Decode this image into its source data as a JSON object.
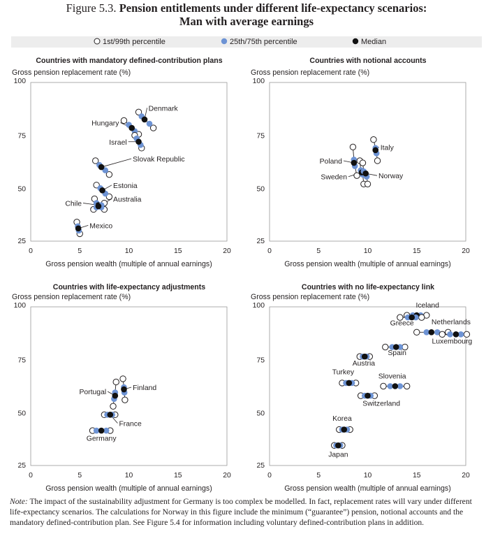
{
  "figure": {
    "label": "Figure 5.3.",
    "title_line1": "Pension entitlements under different life-expectancy scenarios:",
    "title_line2": "Man with average earnings"
  },
  "legend": {
    "items": [
      {
        "label": "1st/99th percentile",
        "marker": "open-circle"
      },
      {
        "label": "25th/75th percentile",
        "marker": "blue-circle"
      },
      {
        "label": "Median",
        "marker": "black-circle"
      }
    ]
  },
  "colors": {
    "quartile": "#6d93d4",
    "median": "#111111",
    "line": "#231f20",
    "background": "#ffffff"
  },
  "note": {
    "label": "Note:",
    "text": "The impact of the sustainability adjustment for Germany is too complex be modelled. In fact, replacement rates will vary under different life-expectancy scenarios. The calculations for Norway in this figure include the minimum (“guarantee”) pension, notional accounts and the mandatory defined-contribution plan. See Figure 5.4 for information including voluntary defined-contribution plans in addition."
  },
  "chart_data": [
    {
      "type": "scatter",
      "title": "Countries with mandatory defined-contribution plans",
      "ylabel": "Gross pension replacement rate (%)",
      "xlabel": "Gross pension wealth (multiple of annual earnings)",
      "xlim": [
        0,
        20
      ],
      "ylim": [
        25,
        100
      ],
      "xticks": [
        0,
        5,
        10,
        15,
        20
      ],
      "yticks": [
        25,
        50,
        75,
        100
      ],
      "series": [
        {
          "country": "Denmark",
          "points": [
            [
              11.0,
              86
            ],
            [
              11.3,
              84
            ],
            [
              11.6,
              82.5
            ],
            [
              12.1,
              80.5
            ],
            [
              12.5,
              78.5
            ]
          ]
        },
        {
          "country": "Hungary",
          "points": [
            [
              9.5,
              82
            ],
            [
              10.0,
              80
            ],
            [
              10.3,
              78.5
            ],
            [
              10.6,
              77
            ],
            [
              11.0,
              75.5
            ]
          ]
        },
        {
          "country": "Israel",
          "points": [
            [
              10.6,
              75
            ],
            [
              10.8,
              73.5
            ],
            [
              11.0,
              72
            ],
            [
              11.2,
              70.5
            ],
            [
              11.3,
              69
            ]
          ]
        },
        {
          "country": "Slovak Republic",
          "points": [
            [
              6.6,
              63
            ],
            [
              7.0,
              61
            ],
            [
              7.2,
              60
            ],
            [
              7.6,
              58.5
            ],
            [
              8.0,
              56.5
            ]
          ]
        },
        {
          "country": "Estonia",
          "points": [
            [
              6.7,
              51.5
            ],
            [
              7.1,
              50
            ],
            [
              7.3,
              49
            ],
            [
              7.6,
              47.5
            ],
            [
              8.0,
              46
            ]
          ]
        },
        {
          "country": "Chile",
          "points": [
            [
              6.5,
              45
            ],
            [
              6.7,
              43
            ],
            [
              6.9,
              42
            ],
            [
              7.2,
              41
            ],
            [
              7.5,
              40
            ]
          ]
        },
        {
          "country": "Australia",
          "points": [
            [
              6.4,
              40
            ],
            [
              6.7,
              41
            ],
            [
              6.9,
              41.5
            ],
            [
              7.2,
              42
            ],
            [
              7.5,
              43
            ]
          ]
        },
        {
          "country": "Mexico",
          "points": [
            [
              4.7,
              34
            ],
            [
              4.8,
              32
            ],
            [
              4.85,
              31
            ],
            [
              4.9,
              30
            ],
            [
              5.0,
              28.5
            ]
          ]
        }
      ],
      "labels": [
        {
          "text": "Denmark",
          "anchor": "start",
          "at": [
            12.0,
            87
          ],
          "to": [
            11.6,
            82.5
          ]
        },
        {
          "text": "Hungary",
          "anchor": "end",
          "at": [
            9.0,
            80
          ],
          "to": [
            10.3,
            78.5
          ]
        },
        {
          "text": "Israel",
          "anchor": "end",
          "at": [
            9.8,
            71
          ],
          "to": [
            11.0,
            72
          ]
        },
        {
          "text": "Slovak Republic",
          "anchor": "start",
          "at": [
            10.4,
            63
          ],
          "to": [
            7.2,
            60
          ]
        },
        {
          "text": "Estonia",
          "anchor": "start",
          "at": [
            8.4,
            50.5
          ],
          "to": [
            7.3,
            49
          ]
        },
        {
          "text": "Chile",
          "anchor": "end",
          "at": [
            5.2,
            42
          ],
          "to": [
            6.9,
            42
          ]
        },
        {
          "text": "Australia",
          "anchor": "start",
          "at": [
            8.4,
            44
          ],
          "to": [
            6.9,
            41.5
          ]
        },
        {
          "text": "Mexico",
          "anchor": "start",
          "at": [
            6.0,
            31.5
          ],
          "to": [
            4.85,
            31
          ]
        }
      ]
    },
    {
      "type": "scatter",
      "title": "Countries with notional accounts",
      "ylabel": "Gross pension replacement rate (%)",
      "xlabel": "Gross pension wealth (multiple of annual earnings)",
      "xlim": [
        0,
        20
      ],
      "ylim": [
        25,
        100
      ],
      "xticks": [
        0,
        5,
        10,
        15,
        20
      ],
      "yticks": [
        25,
        50,
        75,
        100
      ],
      "series": [
        {
          "country": "Italy",
          "points": [
            [
              10.6,
              73
            ],
            [
              10.8,
              69
            ],
            [
              10.8,
              68
            ],
            [
              10.9,
              66.5
            ],
            [
              11.0,
              63
            ]
          ]
        },
        {
          "country": "Poland",
          "points": [
            [
              8.5,
              69.5
            ],
            [
              8.6,
              63.5
            ],
            [
              8.6,
              62
            ],
            [
              8.7,
              60.5
            ],
            [
              8.9,
              56
            ]
          ]
        },
        {
          "country": "Sweden",
          "points": [
            [
              9.2,
              63
            ],
            [
              9.3,
              58.5
            ],
            [
              9.4,
              57.5
            ],
            [
              9.5,
              56.5
            ],
            [
              9.6,
              52
            ]
          ]
        },
        {
          "country": "Norway",
          "points": [
            [
              9.5,
              62
            ],
            [
              9.6,
              58
            ],
            [
              9.8,
              57
            ],
            [
              9.9,
              55.5
            ],
            [
              10.0,
              52
            ]
          ]
        }
      ],
      "labels": [
        {
          "text": "Italy",
          "anchor": "start",
          "at": [
            11.3,
            68.5
          ],
          "to": [
            10.8,
            68
          ]
        },
        {
          "text": "Poland",
          "anchor": "end",
          "at": [
            7.4,
            62
          ],
          "to": [
            8.6,
            62
          ]
        },
        {
          "text": "Sweden",
          "anchor": "end",
          "at": [
            7.9,
            54.5
          ],
          "to": [
            9.4,
            57.5
          ]
        },
        {
          "text": "Norway",
          "anchor": "start",
          "at": [
            11.1,
            55
          ],
          "to": [
            9.8,
            57
          ]
        }
      ]
    },
    {
      "type": "scatter",
      "title": "Countries with life-expectancy adjustments",
      "ylabel": "Gross pension replacement rate (%)",
      "xlabel": "Gross pension wealth (multiple of annual earnings)",
      "xlim": [
        0,
        20
      ],
      "ylim": [
        25,
        100
      ],
      "xticks": [
        0,
        5,
        10,
        15,
        20
      ],
      "yticks": [
        25,
        50,
        75,
        100
      ],
      "series": [
        {
          "country": "Portugal",
          "points": [
            [
              8.7,
              64.5
            ],
            [
              8.6,
              59.5
            ],
            [
              8.6,
              58
            ],
            [
              8.5,
              56.5
            ],
            [
              8.4,
              53
            ]
          ]
        },
        {
          "country": "Finland",
          "points": [
            [
              9.4,
              66
            ],
            [
              9.5,
              62
            ],
            [
              9.5,
              61
            ],
            [
              9.55,
              59.5
            ],
            [
              9.6,
              56
            ]
          ]
        },
        {
          "country": "France",
          "points": [
            [
              7.5,
              49
            ],
            [
              7.8,
              49
            ],
            [
              8.1,
              49
            ],
            [
              8.3,
              49
            ],
            [
              8.6,
              49
            ]
          ]
        },
        {
          "country": "Germany",
          "points": [
            [
              6.3,
              41.5
            ],
            [
              6.7,
              41.5
            ],
            [
              7.2,
              41.5
            ],
            [
              7.7,
              41.5
            ],
            [
              8.1,
              41.5
            ]
          ]
        }
      ],
      "labels": [
        {
          "text": "Portugal",
          "anchor": "end",
          "at": [
            7.7,
            59
          ],
          "to": [
            8.6,
            58
          ]
        },
        {
          "text": "Finland",
          "anchor": "start",
          "at": [
            10.4,
            61
          ],
          "to": [
            9.5,
            61
          ]
        },
        {
          "text": "France",
          "anchor": "start",
          "at": [
            9.0,
            44
          ],
          "to": [
            8.1,
            49
          ]
        },
        {
          "text": "Germany",
          "anchor": "middle",
          "at": [
            7.2,
            37
          ],
          "to": null
        }
      ]
    },
    {
      "type": "scatter",
      "title": "Countries with no life-expectancy link",
      "ylabel": "Gross pension replacement rate (%)",
      "xlabel": "Gross pension wealth (multiple of annual earnings)",
      "xlim": [
        0,
        20
      ],
      "ylim": [
        25,
        100
      ],
      "xticks": [
        0,
        5,
        10,
        15,
        20
      ],
      "yticks": [
        25,
        50,
        75,
        100
      ],
      "series": [
        {
          "country": "Iceland",
          "points": [
            [
              14.0,
              96
            ],
            [
              14.6,
              96
            ],
            [
              15.0,
              96
            ],
            [
              15.4,
              96
            ],
            [
              16.0,
              96
            ]
          ]
        },
        {
          "country": "Greece",
          "points": [
            [
              13.3,
              95
            ],
            [
              14.1,
              95
            ],
            [
              14.5,
              95
            ],
            [
              14.9,
              95
            ],
            [
              15.5,
              95
            ]
          ]
        },
        {
          "country": "Netherlands",
          "points": [
            [
              15.0,
              88
            ],
            [
              16.0,
              88
            ],
            [
              16.5,
              88
            ],
            [
              17.1,
              88
            ],
            [
              18.2,
              88
            ]
          ]
        },
        {
          "country": "Luxembourg",
          "points": [
            [
              17.6,
              87
            ],
            [
              18.4,
              87
            ],
            [
              19.0,
              87
            ],
            [
              19.5,
              87
            ],
            [
              20.1,
              87
            ]
          ]
        },
        {
          "country": "Spain",
          "points": [
            [
              11.8,
              81
            ],
            [
              12.5,
              81
            ],
            [
              12.9,
              81
            ],
            [
              13.3,
              81
            ],
            [
              13.8,
              81
            ]
          ]
        },
        {
          "country": "Austria",
          "points": [
            [
              9.2,
              76.5
            ],
            [
              9.5,
              76.5
            ],
            [
              9.7,
              76.5
            ],
            [
              9.9,
              76.5
            ],
            [
              10.2,
              76.5
            ]
          ]
        },
        {
          "country": "Turkey",
          "points": [
            [
              7.4,
              64
            ],
            [
              7.8,
              64
            ],
            [
              8.1,
              64
            ],
            [
              8.4,
              64
            ],
            [
              8.8,
              64
            ]
          ]
        },
        {
          "country": "Slovenia",
          "points": [
            [
              11.6,
              62.5
            ],
            [
              12.3,
              62.5
            ],
            [
              12.8,
              62.5
            ],
            [
              13.3,
              62.5
            ],
            [
              14.0,
              62.5
            ]
          ]
        },
        {
          "country": "Switzerland",
          "points": [
            [
              9.3,
              58
            ],
            [
              9.7,
              58
            ],
            [
              10.0,
              58
            ],
            [
              10.3,
              58
            ],
            [
              10.7,
              58
            ]
          ]
        },
        {
          "country": "Korea",
          "points": [
            [
              7.1,
              42
            ],
            [
              7.4,
              42
            ],
            [
              7.6,
              42
            ],
            [
              7.9,
              42
            ],
            [
              8.2,
              42
            ]
          ]
        },
        {
          "country": "Japan",
          "points": [
            [
              6.6,
              34.5
            ],
            [
              6.8,
              34.5
            ],
            [
              7.0,
              34.5
            ],
            [
              7.2,
              34.5
            ],
            [
              7.4,
              34.5
            ]
          ]
        }
      ],
      "labels": [
        {
          "text": "Iceland",
          "anchor": "middle",
          "at": [
            16.1,
            100
          ],
          "to": null
        },
        {
          "text": "Greece",
          "anchor": "middle",
          "at": [
            13.5,
            91.5
          ],
          "to": null
        },
        {
          "text": "Netherlands",
          "anchor": "middle",
          "at": [
            18.5,
            92
          ],
          "to": null
        },
        {
          "text": "Luxembourg",
          "anchor": "middle",
          "at": [
            18.6,
            83
          ],
          "to": null
        },
        {
          "text": "Spain",
          "anchor": "middle",
          "at": [
            13.0,
            77.5
          ],
          "to": null
        },
        {
          "text": "Austria",
          "anchor": "middle",
          "at": [
            9.6,
            72.5
          ],
          "to": null
        },
        {
          "text": "Turkey",
          "anchor": "middle",
          "at": [
            7.5,
            68.5
          ],
          "to": null
        },
        {
          "text": "Slovenia",
          "anchor": "middle",
          "at": [
            12.5,
            66.5
          ],
          "to": null
        },
        {
          "text": "Switzerland",
          "anchor": "middle",
          "at": [
            11.4,
            53.5
          ],
          "to": null
        },
        {
          "text": "Korea",
          "anchor": "middle",
          "at": [
            7.4,
            46.5
          ],
          "to": null
        },
        {
          "text": "Japan",
          "anchor": "middle",
          "at": [
            7.0,
            29.5
          ],
          "to": null
        }
      ]
    }
  ]
}
